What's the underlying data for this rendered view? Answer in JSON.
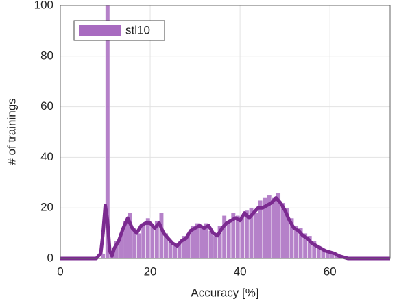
{
  "chart_data": {
    "type": "histogram",
    "xlabel": "Accuracy [%]",
    "ylabel": "# of trainings",
    "xlim": [
      0,
      73.4
    ],
    "ylim": [
      0,
      100
    ],
    "xticks": [
      0,
      20,
      40,
      60
    ],
    "yticks": [
      0,
      20,
      40,
      60,
      80,
      100
    ],
    "grid": true,
    "legend": "upper left",
    "series": [
      {
        "name": "stl10",
        "color": "#a86bc0",
        "bins": [
          9,
          10,
          11,
          12,
          13,
          14,
          15,
          16,
          17,
          18,
          19,
          20,
          21,
          22,
          23,
          24,
          25,
          26,
          27,
          28,
          29,
          30,
          31,
          32,
          33,
          34,
          35,
          36,
          37,
          38,
          39,
          40,
          41,
          42,
          43,
          44,
          45,
          46,
          47,
          48,
          49,
          50,
          51,
          52,
          53,
          54,
          55,
          56,
          57,
          58,
          59,
          60,
          61,
          62,
          63,
          64
        ],
        "values": [
          2,
          100,
          2,
          7,
          10,
          15,
          18,
          12,
          10,
          14,
          16,
          13,
          15,
          18,
          10,
          7,
          5,
          6,
          9,
          10,
          13,
          14,
          12,
          14,
          11,
          9,
          13,
          17,
          15,
          18,
          17,
          17,
          19,
          20,
          18,
          23,
          24,
          25,
          24,
          26,
          22,
          20,
          16,
          13,
          12,
          10,
          9,
          7,
          5,
          4,
          3,
          2,
          2,
          1,
          1
        ],
        "curve": {
          "color": "#7b2a90",
          "x": [
            0,
            8,
            9,
            9.5,
            10,
            10.5,
            11,
            11.5,
            12,
            13,
            14,
            15,
            16,
            17,
            18,
            19,
            20,
            21,
            22,
            23,
            24,
            25,
            26,
            27,
            28,
            29,
            30,
            31,
            32,
            33,
            34,
            35,
            36,
            37,
            38,
            39,
            40,
            41,
            42,
            43,
            44,
            45,
            46,
            47,
            48,
            49,
            50,
            51,
            52,
            53,
            54,
            55,
            56,
            57,
            58,
            59,
            60,
            61,
            62,
            63,
            64,
            73.4
          ],
          "values": [
            0,
            0,
            2,
            10,
            21,
            15,
            3,
            1,
            4,
            7,
            12,
            16,
            12,
            10,
            13,
            14,
            14,
            12,
            14,
            10,
            8,
            6,
            5,
            7,
            8,
            11,
            12,
            13,
            12,
            13,
            10,
            9,
            12,
            14,
            15,
            16,
            15,
            18,
            16,
            18,
            20,
            20,
            21,
            22,
            24,
            22,
            19,
            15,
            12,
            11,
            9,
            8,
            6,
            5,
            4,
            3,
            2.5,
            2,
            1,
            0.5,
            0,
            0
          ]
        }
      }
    ]
  }
}
